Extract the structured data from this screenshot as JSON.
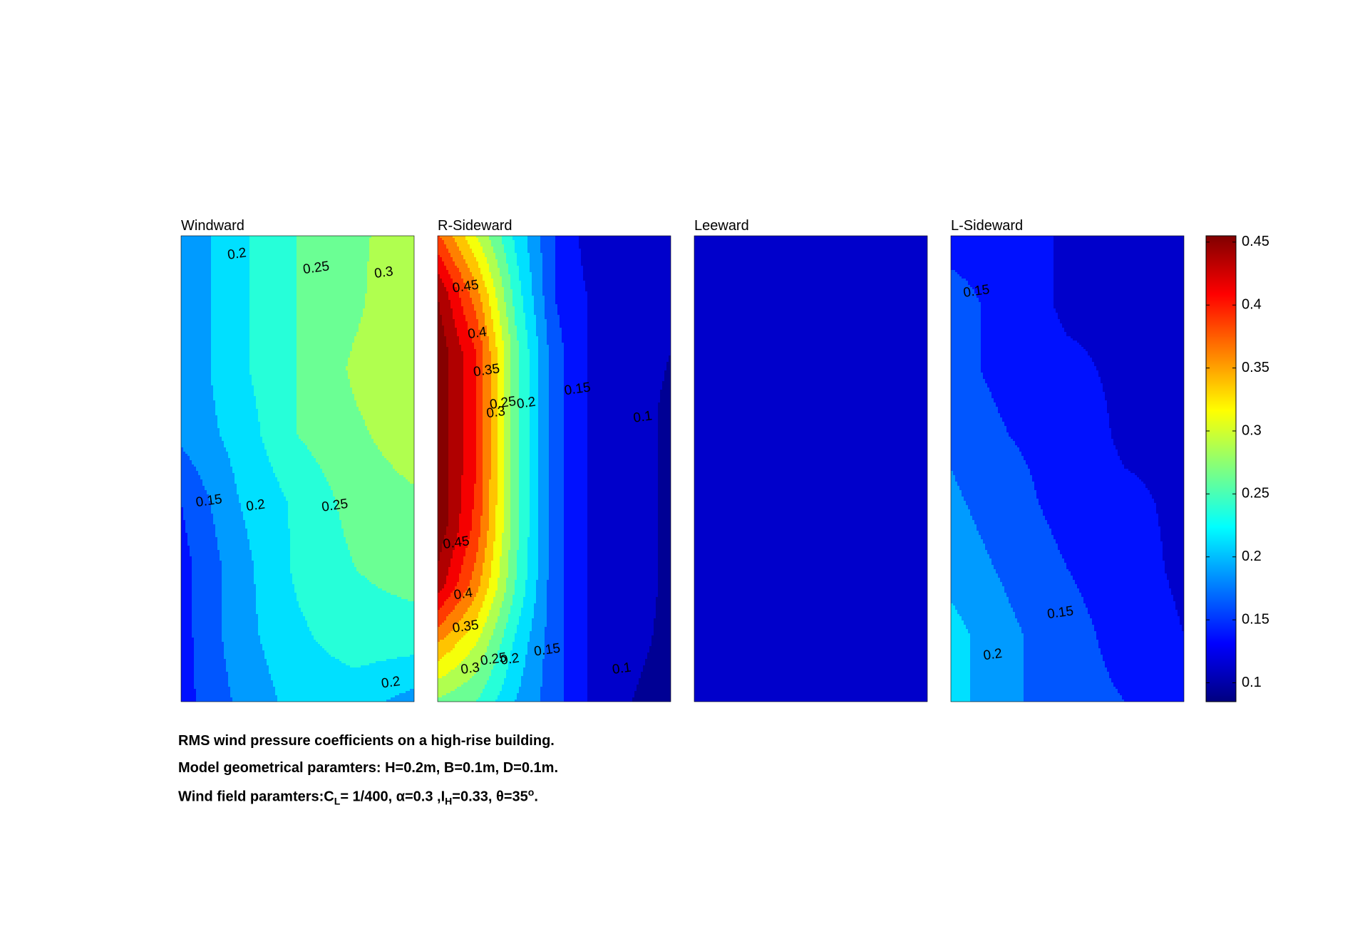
{
  "chart_data": {
    "type": "heatmap",
    "subtype": "filled-contour",
    "colormap": "jet",
    "colorbar": {
      "range": [
        0.085,
        0.455
      ],
      "ticks": [
        0.1,
        0.15,
        0.2,
        0.25,
        0.3,
        0.35,
        0.4,
        0.45
      ],
      "tick_labels": [
        "0.1",
        "0.15",
        "0.2",
        "0.25",
        "0.3",
        "0.35",
        "0.4",
        "0.45"
      ],
      "placement": "right"
    },
    "contour_levels": [
      0.1,
      0.125,
      0.15,
      0.175,
      0.2,
      0.225,
      0.25,
      0.275,
      0.3,
      0.325,
      0.35,
      0.375,
      0.4,
      0.425,
      0.45
    ],
    "panels": [
      {
        "title": "Windward",
        "grid": [
          [
            0.18,
            0.22,
            0.25,
            0.27,
            0.29
          ],
          [
            0.18,
            0.22,
            0.25,
            0.27,
            0.3
          ],
          [
            0.18,
            0.22,
            0.25,
            0.28,
            0.3
          ],
          [
            0.18,
            0.21,
            0.25,
            0.27,
            0.29
          ],
          [
            0.15,
            0.2,
            0.23,
            0.26,
            0.27
          ],
          [
            0.14,
            0.19,
            0.23,
            0.25,
            0.26
          ],
          [
            0.14,
            0.19,
            0.22,
            0.24,
            0.24
          ],
          [
            0.14,
            0.18,
            0.21,
            0.21,
            0.19
          ]
        ],
        "contour_labels": [
          {
            "text": "0.2",
            "at": [
              0.24,
              0.04
            ]
          },
          {
            "text": "0.25",
            "at": [
              0.58,
              0.07
            ]
          },
          {
            "text": "0.3",
            "at": [
              0.87,
              0.08
            ]
          },
          {
            "text": "0.15",
            "at": [
              0.12,
              0.57
            ]
          },
          {
            "text": "0.2",
            "at": [
              0.32,
              0.58
            ]
          },
          {
            "text": "0.25",
            "at": [
              0.66,
              0.58
            ]
          },
          {
            "text": "0.2",
            "at": [
              0.9,
              0.96
            ]
          }
        ]
      },
      {
        "title": "R-Sideward",
        "grid": [
          [
            0.38,
            0.3,
            0.22,
            0.15,
            0.11,
            0.11,
            0.11
          ],
          [
            0.45,
            0.36,
            0.24,
            0.15,
            0.12,
            0.11,
            0.11
          ],
          [
            0.47,
            0.4,
            0.26,
            0.16,
            0.12,
            0.11,
            0.1
          ],
          [
            0.47,
            0.4,
            0.26,
            0.16,
            0.12,
            0.11,
            0.095
          ],
          [
            0.47,
            0.4,
            0.26,
            0.16,
            0.12,
            0.11,
            0.095
          ],
          [
            0.47,
            0.39,
            0.26,
            0.16,
            0.12,
            0.11,
            0.095
          ],
          [
            0.44,
            0.36,
            0.25,
            0.16,
            0.12,
            0.11,
            0.095
          ],
          [
            0.35,
            0.3,
            0.22,
            0.16,
            0.12,
            0.105,
            0.095
          ],
          [
            0.27,
            0.25,
            0.2,
            0.16,
            0.12,
            0.1,
            0.09
          ]
        ],
        "contour_labels": [
          {
            "text": "0.45",
            "at": [
              0.12,
              0.11
            ]
          },
          {
            "text": "0.4",
            "at": [
              0.17,
              0.21
            ]
          },
          {
            "text": "0.35",
            "at": [
              0.21,
              0.29
            ]
          },
          {
            "text": "0.25",
            "at": [
              0.28,
              0.36
            ]
          },
          {
            "text": "0.2",
            "at": [
              0.38,
              0.36
            ]
          },
          {
            "text": "0.3",
            "at": [
              0.25,
              0.38
            ]
          },
          {
            "text": "0.15",
            "at": [
              0.6,
              0.33
            ]
          },
          {
            "text": "0.1",
            "at": [
              0.88,
              0.39
            ]
          },
          {
            "text": "0.45",
            "at": [
              0.08,
              0.66
            ]
          },
          {
            "text": "0.4",
            "at": [
              0.11,
              0.77
            ]
          },
          {
            "text": "0.35",
            "at": [
              0.12,
              0.84
            ]
          },
          {
            "text": "0.3",
            "at": [
              0.14,
              0.93
            ]
          },
          {
            "text": "0.25",
            "at": [
              0.24,
              0.91
            ]
          },
          {
            "text": "0.2",
            "at": [
              0.31,
              0.91
            ]
          },
          {
            "text": "0.15",
            "at": [
              0.47,
              0.89
            ]
          },
          {
            "text": "0.1",
            "at": [
              0.79,
              0.93
            ]
          }
        ]
      },
      {
        "title": "Leeward",
        "grid": [
          [
            0.12,
            0.12
          ],
          [
            0.12,
            0.12
          ]
        ],
        "contour_labels": []
      },
      {
        "title": "L-Sideward",
        "grid": [
          [
            0.14,
            0.14,
            0.12,
            0.12,
            0.12
          ],
          [
            0.16,
            0.14,
            0.12,
            0.12,
            0.12
          ],
          [
            0.16,
            0.14,
            0.13,
            0.12,
            0.12
          ],
          [
            0.17,
            0.15,
            0.14,
            0.12,
            0.12
          ],
          [
            0.18,
            0.16,
            0.14,
            0.13,
            0.12
          ],
          [
            0.19,
            0.17,
            0.15,
            0.135,
            0.12
          ],
          [
            0.21,
            0.18,
            0.16,
            0.14,
            0.125
          ],
          [
            0.21,
            0.18,
            0.16,
            0.15,
            0.13
          ]
        ],
        "contour_labels": [
          {
            "text": "0.15",
            "at": [
              0.11,
              0.12
            ]
          },
          {
            "text": "0.15",
            "at": [
              0.47,
              0.81
            ]
          },
          {
            "text": "0.2",
            "at": [
              0.18,
              0.9
            ]
          }
        ]
      }
    ]
  },
  "caption": {
    "line1": "RMS wind pressure coefficients on a high-rise building.",
    "line2": "Model geometrical paramters: H=0.2m, B=0.1m, D=0.1m.",
    "line3": {
      "prefix": "Wind field paramters:C",
      "cl_sub": "L",
      "cl_value": "= 1/400, α=0.3 ,I",
      "ih_sub": "H",
      "ih_value": "=0.33, θ=35",
      "theta_sup": "o",
      "suffix": "."
    }
  }
}
